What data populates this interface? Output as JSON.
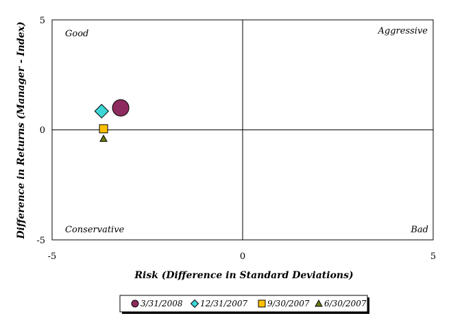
{
  "chart_data": {
    "type": "scatter",
    "xlabel": "Risk (Difference in Standard Deviations)",
    "ylabel": "Difference in Returns (Manager - Index)",
    "xlim": [
      -5,
      5
    ],
    "ylim": [
      -5,
      5
    ],
    "x_ticks": [
      "-5",
      "0",
      "5"
    ],
    "y_ticks": [
      "5",
      "0",
      "-5"
    ],
    "grid": false,
    "zero_lines": true,
    "legend_position": "bottom-center",
    "quadrant_labels": {
      "top_left": "Good",
      "top_right": "Aggressive",
      "bottom_left": "Conservative",
      "bottom_right": "Bad"
    },
    "series": [
      {
        "name": "3/31/2008",
        "marker": "circle",
        "color": "#8E2B5E",
        "x": -3.2,
        "y": 1.0
      },
      {
        "name": "12/31/2007",
        "marker": "diamond",
        "color": "#3ED6D6",
        "x": -3.7,
        "y": 0.85
      },
      {
        "name": "9/30/2007",
        "marker": "square",
        "color": "#FFC000",
        "x": -3.65,
        "y": 0.05
      },
      {
        "name": "6/30/2007",
        "marker": "triangle",
        "color": "#6E7A10",
        "x": -3.65,
        "y": -0.4
      }
    ]
  }
}
